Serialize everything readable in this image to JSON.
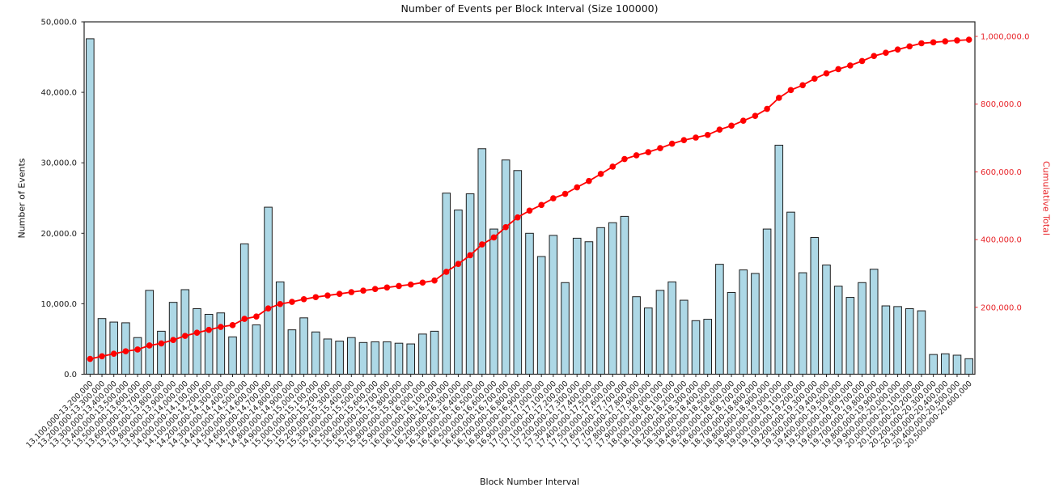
{
  "chart_data": {
    "type": "bar",
    "title": "Number of Events per Block Interval (Size 100000)",
    "xlabel": "Block Number Interval",
    "ylabel_left": "Number of Events",
    "ylabel_right": "Cumulative Total",
    "grid": false,
    "legend": "none",
    "categories": [
      "13,100,000-13,200,000",
      "13,200,000-13,300,000",
      "13,300,000-13,400,000",
      "13,400,000-13,500,000",
      "13,500,000-13,600,000",
      "13,600,000-13,700,000",
      "13,700,000-13,800,000",
      "13,800,000-13,900,000",
      "13,900,000-14,000,000",
      "14,000,000-14,100,000",
      "14,100,000-14,200,000",
      "14,200,000-14,300,000",
      "14,300,000-14,400,000",
      "14,400,000-14,500,000",
      "14,500,000-14,600,000",
      "14,600,000-14,700,000",
      "14,700,000-14,800,000",
      "14,800,000-14,900,000",
      "14,900,000-15,000,000",
      "15,000,000-15,100,000",
      "15,100,000-15,200,000",
      "15,200,000-15,300,000",
      "15,300,000-15,400,000",
      "15,400,000-15,500,000",
      "15,500,000-15,600,000",
      "15,600,000-15,700,000",
      "15,700,000-15,800,000",
      "15,800,000-15,900,000",
      "15,900,000-16,000,000",
      "16,000,000-16,100,000",
      "16,100,000-16,200,000",
      "16,200,000-16,300,000",
      "16,300,000-16,400,000",
      "16,400,000-16,500,000",
      "16,500,000-16,600,000",
      "16,600,000-16,700,000",
      "16,700,000-16,800,000",
      "16,800,000-16,900,000",
      "16,900,000-17,000,000",
      "17,000,000-17,100,000",
      "17,100,000-17,200,000",
      "17,200,000-17,300,000",
      "17,300,000-17,400,000",
      "17,400,000-17,500,000",
      "17,500,000-17,600,000",
      "17,600,000-17,700,000",
      "17,700,000-17,800,000",
      "17,800,000-17,900,000",
      "17,900,000-18,000,000",
      "18,000,000-18,100,000",
      "18,100,000-18,200,000",
      "18,200,000-18,300,000",
      "18,300,000-18,400,000",
      "18,400,000-18,500,000",
      "18,500,000-18,600,000",
      "18,600,000-18,700,000",
      "18,700,000-18,800,000",
      "18,800,000-18,900,000",
      "18,900,000-19,000,000",
      "19,000,000-19,100,000",
      "19,100,000-19,200,000",
      "19,200,000-19,300,000",
      "19,300,000-19,400,000",
      "19,400,000-19,500,000",
      "19,500,000-19,600,000",
      "19,600,000-19,700,000",
      "19,700,000-19,800,000",
      "19,800,000-19,900,000",
      "19,900,000-20,000,000",
      "20,000,000-20,100,000",
      "20,100,000-20,200,000",
      "20,200,000-20,300,000",
      "20,300,000-20,400,000",
      "20,400,000-20,500,000",
      "20,500,000-20,600,000"
    ],
    "series": [
      {
        "name": "Number of Events",
        "type": "bar",
        "axis": "left",
        "color": "#add8e6",
        "edge_color": "#1f1f1f",
        "values": [
          47600,
          7900,
          7400,
          7300,
          5200,
          11900,
          6100,
          10200,
          12000,
          9300,
          8500,
          8700,
          5300,
          18500,
          7000,
          23700,
          13100,
          6300,
          8000,
          6000,
          5000,
          4700,
          5200,
          4500,
          4600,
          4600,
          4400,
          4300,
          5700,
          6100,
          25700,
          23300,
          25600,
          32000,
          20600,
          30400,
          28900,
          20000,
          16700,
          19700,
          13000,
          19300,
          18800,
          20800,
          21500,
          22400,
          11000,
          9400,
          11900,
          13100,
          10500,
          7600,
          7800,
          15600,
          11600,
          14800,
          14300,
          20600,
          32500,
          23000,
          14400,
          19400,
          15500,
          12500,
          10900,
          13000,
          14900,
          9700,
          9600,
          9300,
          9000,
          2800,
          2900,
          2700,
          2200
        ]
      },
      {
        "name": "Cumulative Total",
        "type": "line",
        "axis": "right",
        "color": "#ff0000",
        "marker": "circle",
        "values": [
          47600,
          55500,
          62900,
          70200,
          75400,
          87300,
          93400,
          103600,
          115600,
          124900,
          133400,
          142100,
          147400,
          165900,
          172900,
          196600,
          209700,
          216000,
          224000,
          230000,
          235000,
          239700,
          244900,
          249400,
          254000,
          258600,
          263000,
          267300,
          273000,
          279100,
          304800,
          328100,
          353700,
          385700,
          406300,
          436700,
          465600,
          485600,
          502300,
          522000,
          535000,
          554300,
          573100,
          593900,
          615400,
          637800,
          648800,
          658200,
          670100,
          683200,
          693700,
          701300,
          709100,
          724700,
          736300,
          751100,
          765400,
          786000,
          818500,
          841500,
          855900,
          875300,
          890800,
          903300,
          914200,
          927200,
          942100,
          951800,
          961400,
          970700,
          979700,
          982500,
          985400,
          988100,
          990300
        ]
      }
    ],
    "left_axis": {
      "min": 0,
      "max": 50000,
      "color": "#1a1a1a",
      "ticks": [
        {
          "value": 0,
          "label": "0.0"
        },
        {
          "value": 10000,
          "label": "10,000.0"
        },
        {
          "value": 20000,
          "label": "20,000.0"
        },
        {
          "value": 30000,
          "label": "30,000.0"
        },
        {
          "value": 40000,
          "label": "40,000.0"
        },
        {
          "value": 50000,
          "label": "50,000.0"
        }
      ]
    },
    "right_axis": {
      "color": "#e8262b",
      "ticks": [
        {
          "value": 200000,
          "label": "200,000.0"
        },
        {
          "value": 400000,
          "label": "400,000.0"
        },
        {
          "value": 600000,
          "label": "600,000.0"
        },
        {
          "value": 800000,
          "label": "800,000.0"
        },
        {
          "value": 1000000,
          "label": "1,000,000.0"
        }
      ]
    }
  }
}
